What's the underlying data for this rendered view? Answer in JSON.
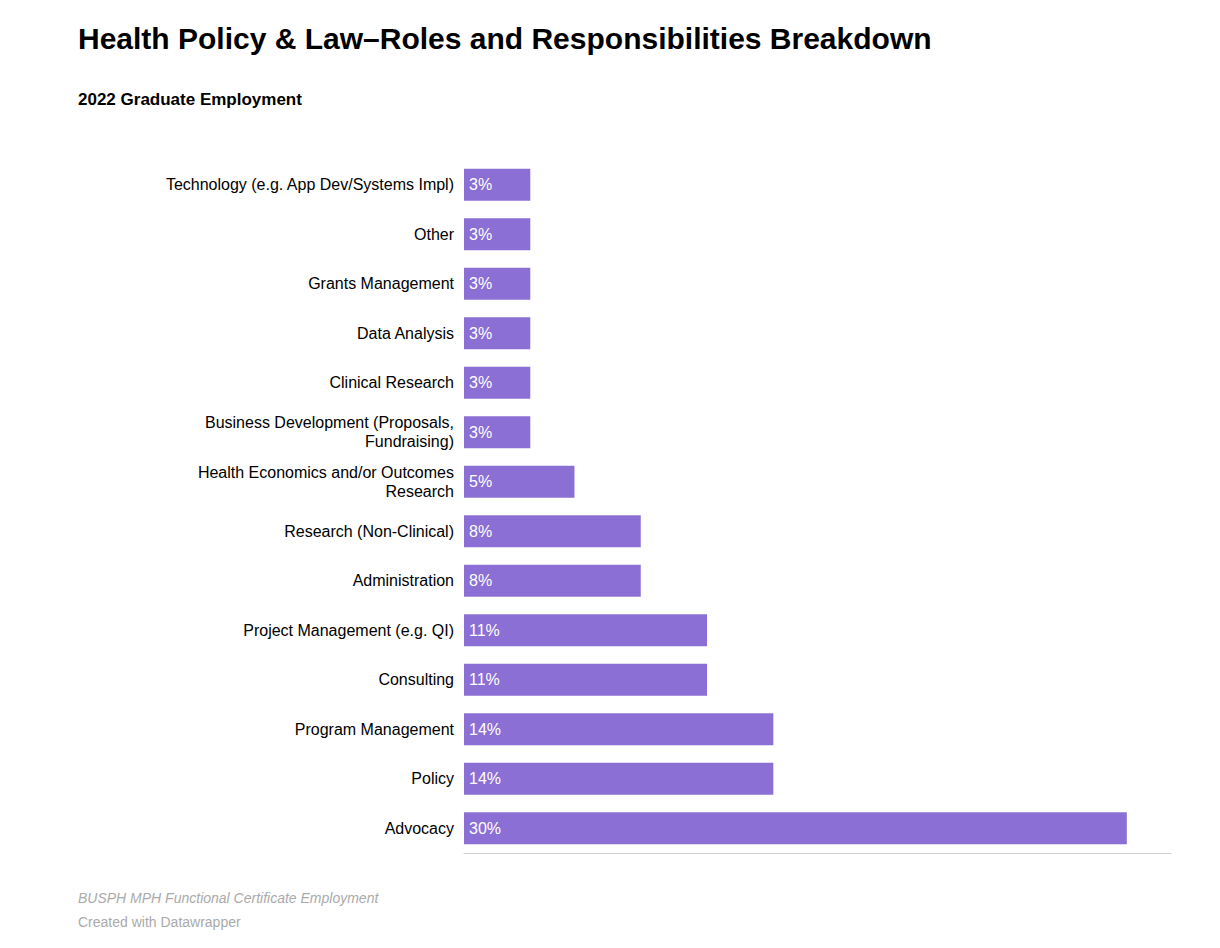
{
  "chart_data": {
    "type": "bar",
    "orientation": "horizontal",
    "title": "Health Policy & Law–Roles and Responsibilities Breakdown",
    "subtitle": "2022 Graduate Employment",
    "categories": [
      "Advocacy",
      "Policy",
      "Program Management",
      "Consulting",
      "Project Management (e.g. QI)",
      "Administration",
      "Research (Non-Clinical)",
      "Health Economics and/or Outcomes\nResearch",
      "Business Development (Proposals,\nFundraising)",
      "Clinical Research",
      "Data Analysis",
      "Grants Management",
      "Other",
      "Technology (e.g. App Dev/Systems Impl)"
    ],
    "values": [
      30,
      14,
      14,
      11,
      11,
      8,
      8,
      5,
      3,
      3,
      3,
      3,
      3,
      3
    ],
    "value_labels": [
      "30%",
      "14%",
      "14%",
      "11%",
      "11%",
      "8%",
      "8%",
      "5%",
      "3%",
      "3%",
      "3%",
      "3%",
      "3%",
      "3%"
    ],
    "data_labels": true,
    "color": "#8B6FD4",
    "xlim": [
      0,
      32
    ],
    "tick_labels": "y",
    "grid": false,
    "annotations": [
      "BUSPH MPH Functional Certificate Employment",
      "Created with Datawrapper"
    ]
  }
}
